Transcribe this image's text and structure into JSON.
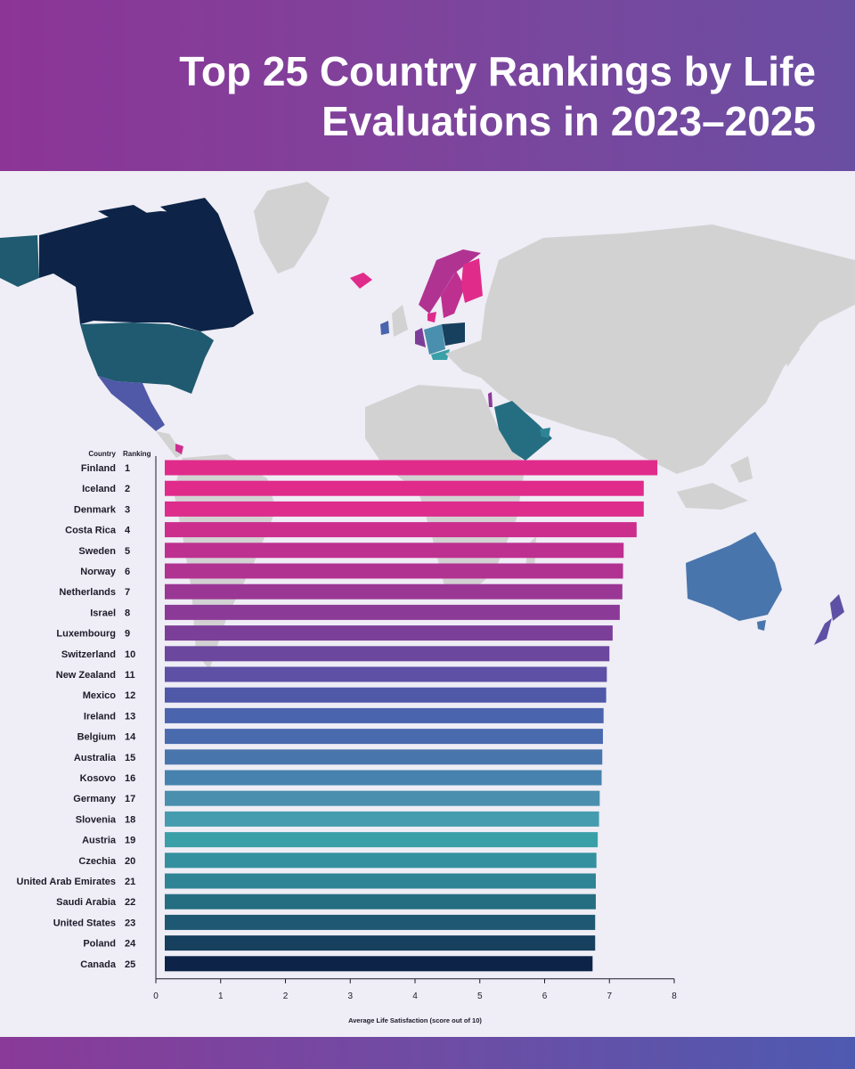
{
  "title": "Top 25 Country Rankings by Life Evaluations in 2023–2025",
  "chart_data": {
    "type": "bar",
    "orientation": "horizontal",
    "title": "Top 25 Country Rankings by Life Evaluations in 2023–2025",
    "column_headers": {
      "country": "Country",
      "ranking": "Ranking"
    },
    "categories": [
      "Finland",
      "Iceland",
      "Denmark",
      "Costa Rica",
      "Sweden",
      "Norway",
      "Netherlands",
      "Israel",
      "Luxembourg",
      "Switzerland",
      "New Zealand",
      "Mexico",
      "Ireland",
      "Belgium",
      "Australia",
      "Kosovo",
      "Germany",
      "Slovenia",
      "Austria",
      "Czechia",
      "United Arab Emirates",
      "Saudi Arabia",
      "United States",
      "Poland",
      "Canada"
    ],
    "rankings": [
      1,
      2,
      3,
      4,
      5,
      6,
      7,
      8,
      9,
      10,
      11,
      12,
      13,
      14,
      15,
      16,
      17,
      18,
      19,
      20,
      21,
      22,
      23,
      24,
      25
    ],
    "values": [
      7.74,
      7.53,
      7.53,
      7.42,
      7.22,
      7.21,
      7.2,
      7.16,
      7.05,
      7.0,
      6.96,
      6.95,
      6.91,
      6.9,
      6.89,
      6.88,
      6.85,
      6.84,
      6.82,
      6.8,
      6.79,
      6.79,
      6.78,
      6.78,
      6.74
    ],
    "bar_colors": [
      "#e02b8b",
      "#e02b8b",
      "#dd2c8c",
      "#cc2e8e",
      "#be3090",
      "#b03392",
      "#9a3794",
      "#8b3b97",
      "#7c3f99",
      "#6c479e",
      "#5e50a4",
      "#5058a8",
      "#4a65ad",
      "#4a6aae",
      "#4975ad",
      "#4682ad",
      "#4a90ae",
      "#469caf",
      "#3aa0a8",
      "#34909e",
      "#2e8494",
      "#256e82",
      "#1e5872",
      "#173f5e",
      "#0d2448"
    ],
    "xlabel": "Average Life Satisfaction (score out of 10)",
    "ylabel": "",
    "xlim": [
      0,
      8
    ],
    "xticks": [
      0,
      1,
      2,
      3,
      4,
      5,
      6,
      7,
      8
    ],
    "grid": false,
    "legend": "none"
  }
}
